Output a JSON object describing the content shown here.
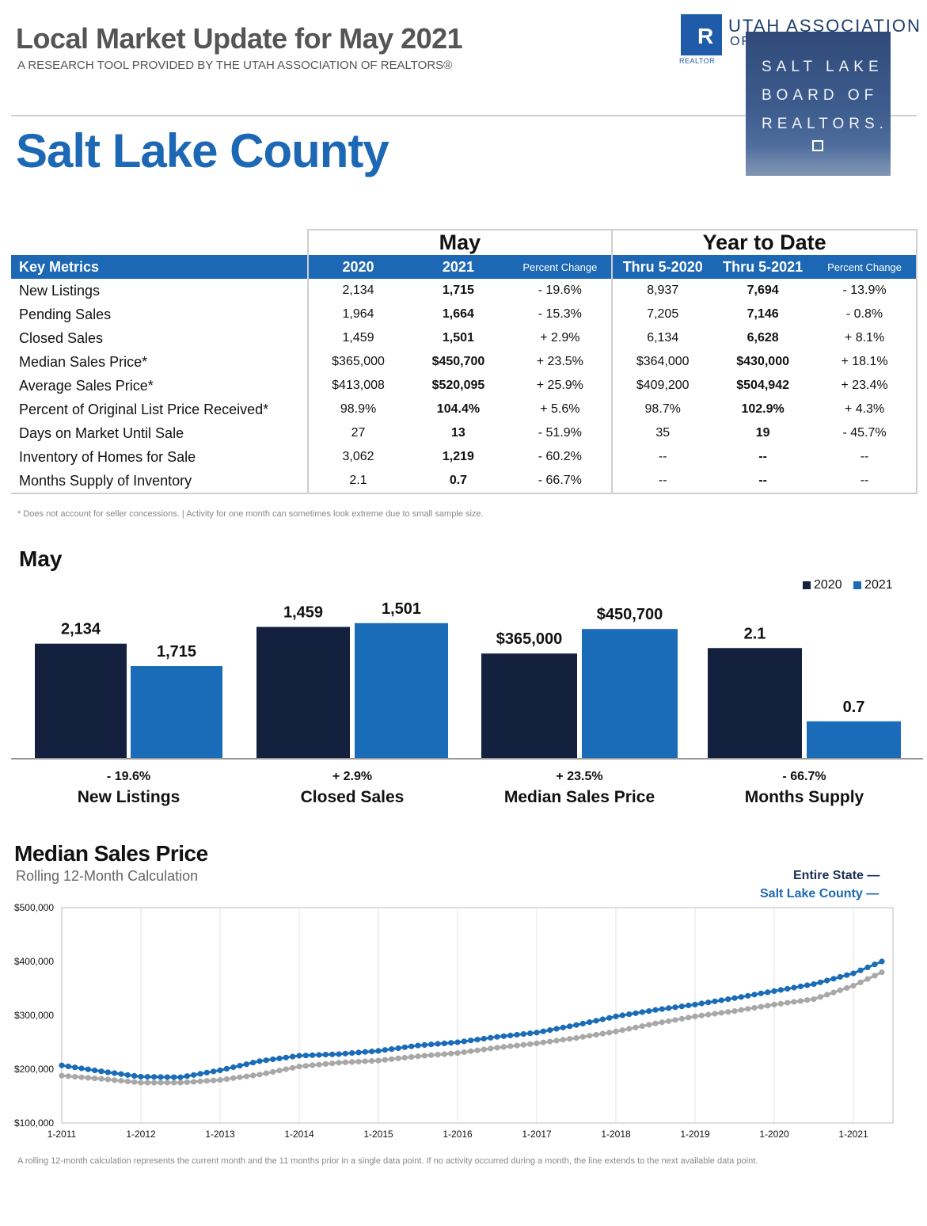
{
  "header": {
    "title": "Local Market Update for May 2021",
    "subtitle": "A RESEARCH TOOL PROVIDED BY THE UTAH ASSOCIATION OF REALTORS®",
    "county": "Salt Lake County",
    "uar_line1": "UTAH ASSOCIATION",
    "uar_line2": "OF",
    "realtor_mark": "REALTOR",
    "board_lines": [
      "SALT LAKE",
      "BOARD OF",
      "REALTORS."
    ]
  },
  "table": {
    "group_may": "May",
    "group_ytd": "Year to Date",
    "col_metric": "Key Metrics",
    "col_2020": "2020",
    "col_2021": "2021",
    "col_pc": "Percent Change",
    "col_ytd_2020": "Thru 5-2020",
    "col_ytd_2021": "Thru 5-2021",
    "col_ytd_pc": "Percent Change",
    "rows": [
      {
        "label": "New Listings",
        "m2020": "2,134",
        "m2021": "1,715",
        "mpc": "- 19.6%",
        "y2020": "8,937",
        "y2021": "7,694",
        "ypc": "- 13.9%"
      },
      {
        "label": "Pending Sales",
        "m2020": "1,964",
        "m2021": "1,664",
        "mpc": "- 15.3%",
        "y2020": "7,205",
        "y2021": "7,146",
        "ypc": "- 0.8%"
      },
      {
        "label": "Closed Sales",
        "m2020": "1,459",
        "m2021": "1,501",
        "mpc": "+ 2.9%",
        "y2020": "6,134",
        "y2021": "6,628",
        "ypc": "+ 8.1%"
      },
      {
        "label": "Median Sales Price*",
        "m2020": "$365,000",
        "m2021": "$450,700",
        "mpc": "+ 23.5%",
        "y2020": "$364,000",
        "y2021": "$430,000",
        "ypc": "+ 18.1%"
      },
      {
        "label": "Average Sales Price*",
        "m2020": "$413,008",
        "m2021": "$520,095",
        "mpc": "+ 25.9%",
        "y2020": "$409,200",
        "y2021": "$504,942",
        "ypc": "+ 23.4%"
      },
      {
        "label": "Percent of Original List Price Received*",
        "m2020": "98.9%",
        "m2021": "104.4%",
        "mpc": "+ 5.6%",
        "y2020": "98.7%",
        "y2021": "102.9%",
        "ypc": "+ 4.3%"
      },
      {
        "label": "Days on Market Until Sale",
        "m2020": "27",
        "m2021": "13",
        "mpc": "- 51.9%",
        "y2020": "35",
        "y2021": "19",
        "ypc": "- 45.7%"
      },
      {
        "label": "Inventory of Homes for Sale",
        "m2020": "3,062",
        "m2021": "1,219",
        "mpc": "- 60.2%",
        "y2020": "--",
        "y2021": "--",
        "ypc": "--"
      },
      {
        "label": "Months Supply of Inventory",
        "m2020": "2.1",
        "m2021": "0.7",
        "mpc": "- 66.7%",
        "y2020": "--",
        "y2021": "--",
        "ypc": "--"
      }
    ],
    "footnote": "* Does not account for seller concessions.  |  Activity for one month can sometimes look extreme due to small sample size."
  },
  "colors": {
    "dark": "#13213f",
    "blue": "#1a6cb8",
    "gray": "#a8a8a8",
    "brand": "#1c68b4"
  },
  "chart_data": [
    {
      "type": "bar",
      "title": "May",
      "legend": [
        "2020",
        "2021"
      ],
      "groups": [
        {
          "name": "New Listings",
          "change": "- 19.6%",
          "v2020": 2134,
          "v2021": 1715,
          "l2020": "2,134",
          "l2021": "1,715"
        },
        {
          "name": "Closed Sales",
          "change": "+ 2.9%",
          "v2020": 1459,
          "v2021": 1501,
          "l2020": "1,459",
          "l2021": "1,501"
        },
        {
          "name": "Median Sales Price",
          "change": "+ 23.5%",
          "v2020": 365000,
          "v2021": 450700,
          "l2020": "$365,000",
          "l2021": "$450,700"
        },
        {
          "name": "Months Supply",
          "change": "- 66.7%",
          "v2020": 2.1,
          "v2021": 0.7,
          "l2020": "2.1",
          "l2021": "0.7"
        }
      ]
    },
    {
      "type": "line",
      "title": "Median Sales Price",
      "subtitle": "Rolling 12-Month Calculation",
      "legend": [
        "Entire State —",
        "Salt Lake County —"
      ],
      "x_ticks": [
        "1-2011",
        "1-2012",
        "1-2013",
        "1-2014",
        "1-2015",
        "1-2016",
        "1-2017",
        "1-2018",
        "1-2019",
        "1-2020",
        "1-2021"
      ],
      "y_ticks": [
        "$100,000",
        "$200,000",
        "$300,000",
        "$400,000",
        "$500,000"
      ],
      "ylim": [
        100000,
        500000
      ],
      "x_start_year": 2011,
      "series": [
        {
          "name": "Entire State",
          "color": "#a8a8a8",
          "x": [
            2011.0,
            2011.5,
            2012.0,
            2012.5,
            2013.0,
            2013.5,
            2014.0,
            2014.5,
            2015.0,
            2015.5,
            2016.0,
            2016.5,
            2017.0,
            2017.5,
            2018.0,
            2018.5,
            2019.0,
            2019.5,
            2020.0,
            2020.5,
            2021.0,
            2021.36
          ],
          "y": [
            188000,
            182000,
            175000,
            175000,
            180000,
            190000,
            205000,
            212000,
            216000,
            224000,
            230000,
            240000,
            248000,
            258000,
            270000,
            285000,
            298000,
            308000,
            320000,
            330000,
            355000,
            380000
          ]
        },
        {
          "name": "Salt Lake County",
          "color": "#1a6cb8",
          "x": [
            2011.0,
            2011.5,
            2012.0,
            2012.5,
            2013.0,
            2013.5,
            2014.0,
            2014.5,
            2015.0,
            2015.5,
            2016.0,
            2016.5,
            2017.0,
            2017.5,
            2018.0,
            2018.5,
            2019.0,
            2019.5,
            2020.0,
            2020.5,
            2021.0,
            2021.36
          ],
          "y": [
            207000,
            196000,
            186000,
            185000,
            198000,
            215000,
            225000,
            228000,
            234000,
            244000,
            250000,
            260000,
            268000,
            282000,
            298000,
            310000,
            320000,
            332000,
            345000,
            358000,
            378000,
            400000
          ]
        }
      ],
      "footnote": "A rolling 12-month calculation represents the current month and the 11 months prior in a single data point. If no activity occurred during a month, the line extends to the next available data point."
    }
  ]
}
